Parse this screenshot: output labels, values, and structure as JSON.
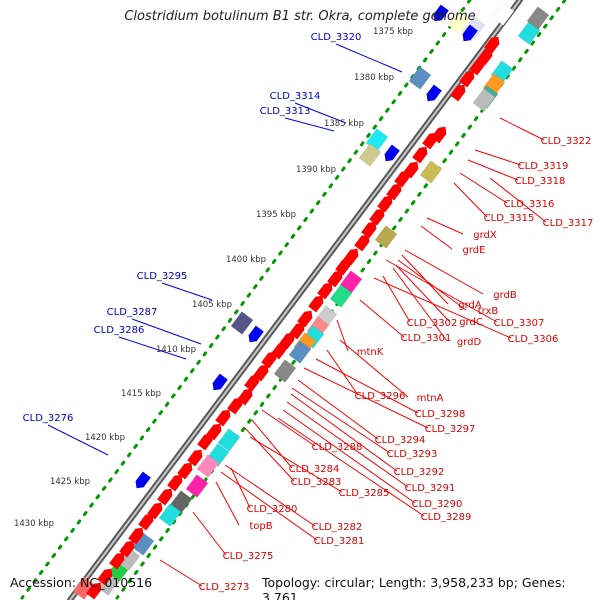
{
  "title": "Clostridium botulinum B1 str. Okra, complete genome",
  "footer": {
    "accession": "Accession: NC_010516",
    "summary": "Topology: circular; Length: 3,958,233 bp; Genes: 3,761"
  },
  "colors": {
    "forward_gene": "#ff0000",
    "reverse_gene": "#0000ee",
    "forward_label": "#dd0000",
    "reverse_label": "#0000cc",
    "backbone": "#888888",
    "tick_dots": "#009900"
  },
  "kbp_ticks": [
    "1375 kbp",
    "1380 kbp",
    "1385 kbp",
    "1390 kbp",
    "1395 kbp",
    "1400 kbp",
    "1405 kbp",
    "1410 kbp",
    "1415 kbp",
    "1420 kbp",
    "1425 kbp",
    "1430 kbp"
  ],
  "reverse_genes": [
    "CLD_3320",
    "CLD_3314",
    "CLD_3313",
    "CLD_3295",
    "CLD_3287",
    "CLD_3286",
    "CLD_3276"
  ],
  "forward_genes": [
    "CLD_3322",
    "CLD_3319",
    "CLD_3318",
    "CLD_3316",
    "CLD_3315",
    "CLD_3317",
    "grdX",
    "grdE",
    "grdB",
    "grdA",
    "trxB",
    "grdC",
    "CLD_3307",
    "CLD_3302",
    "CLD_3301",
    "grdD",
    "CLD_3306",
    "mtnK",
    "mtnA",
    "CLD_3296",
    "CLD_3298",
    "CLD_3297",
    "CLD_3294",
    "CLD_3293",
    "CLD_3288",
    "CLD_3292",
    "CLD_3284",
    "CLD_3283",
    "CLD_3291",
    "CLD_3285",
    "CLD_3290",
    "CLD_3289",
    "CLD_3280",
    "topB",
    "CLD_3282",
    "CLD_3281",
    "CLD_3275",
    "CLD_3273"
  ]
}
